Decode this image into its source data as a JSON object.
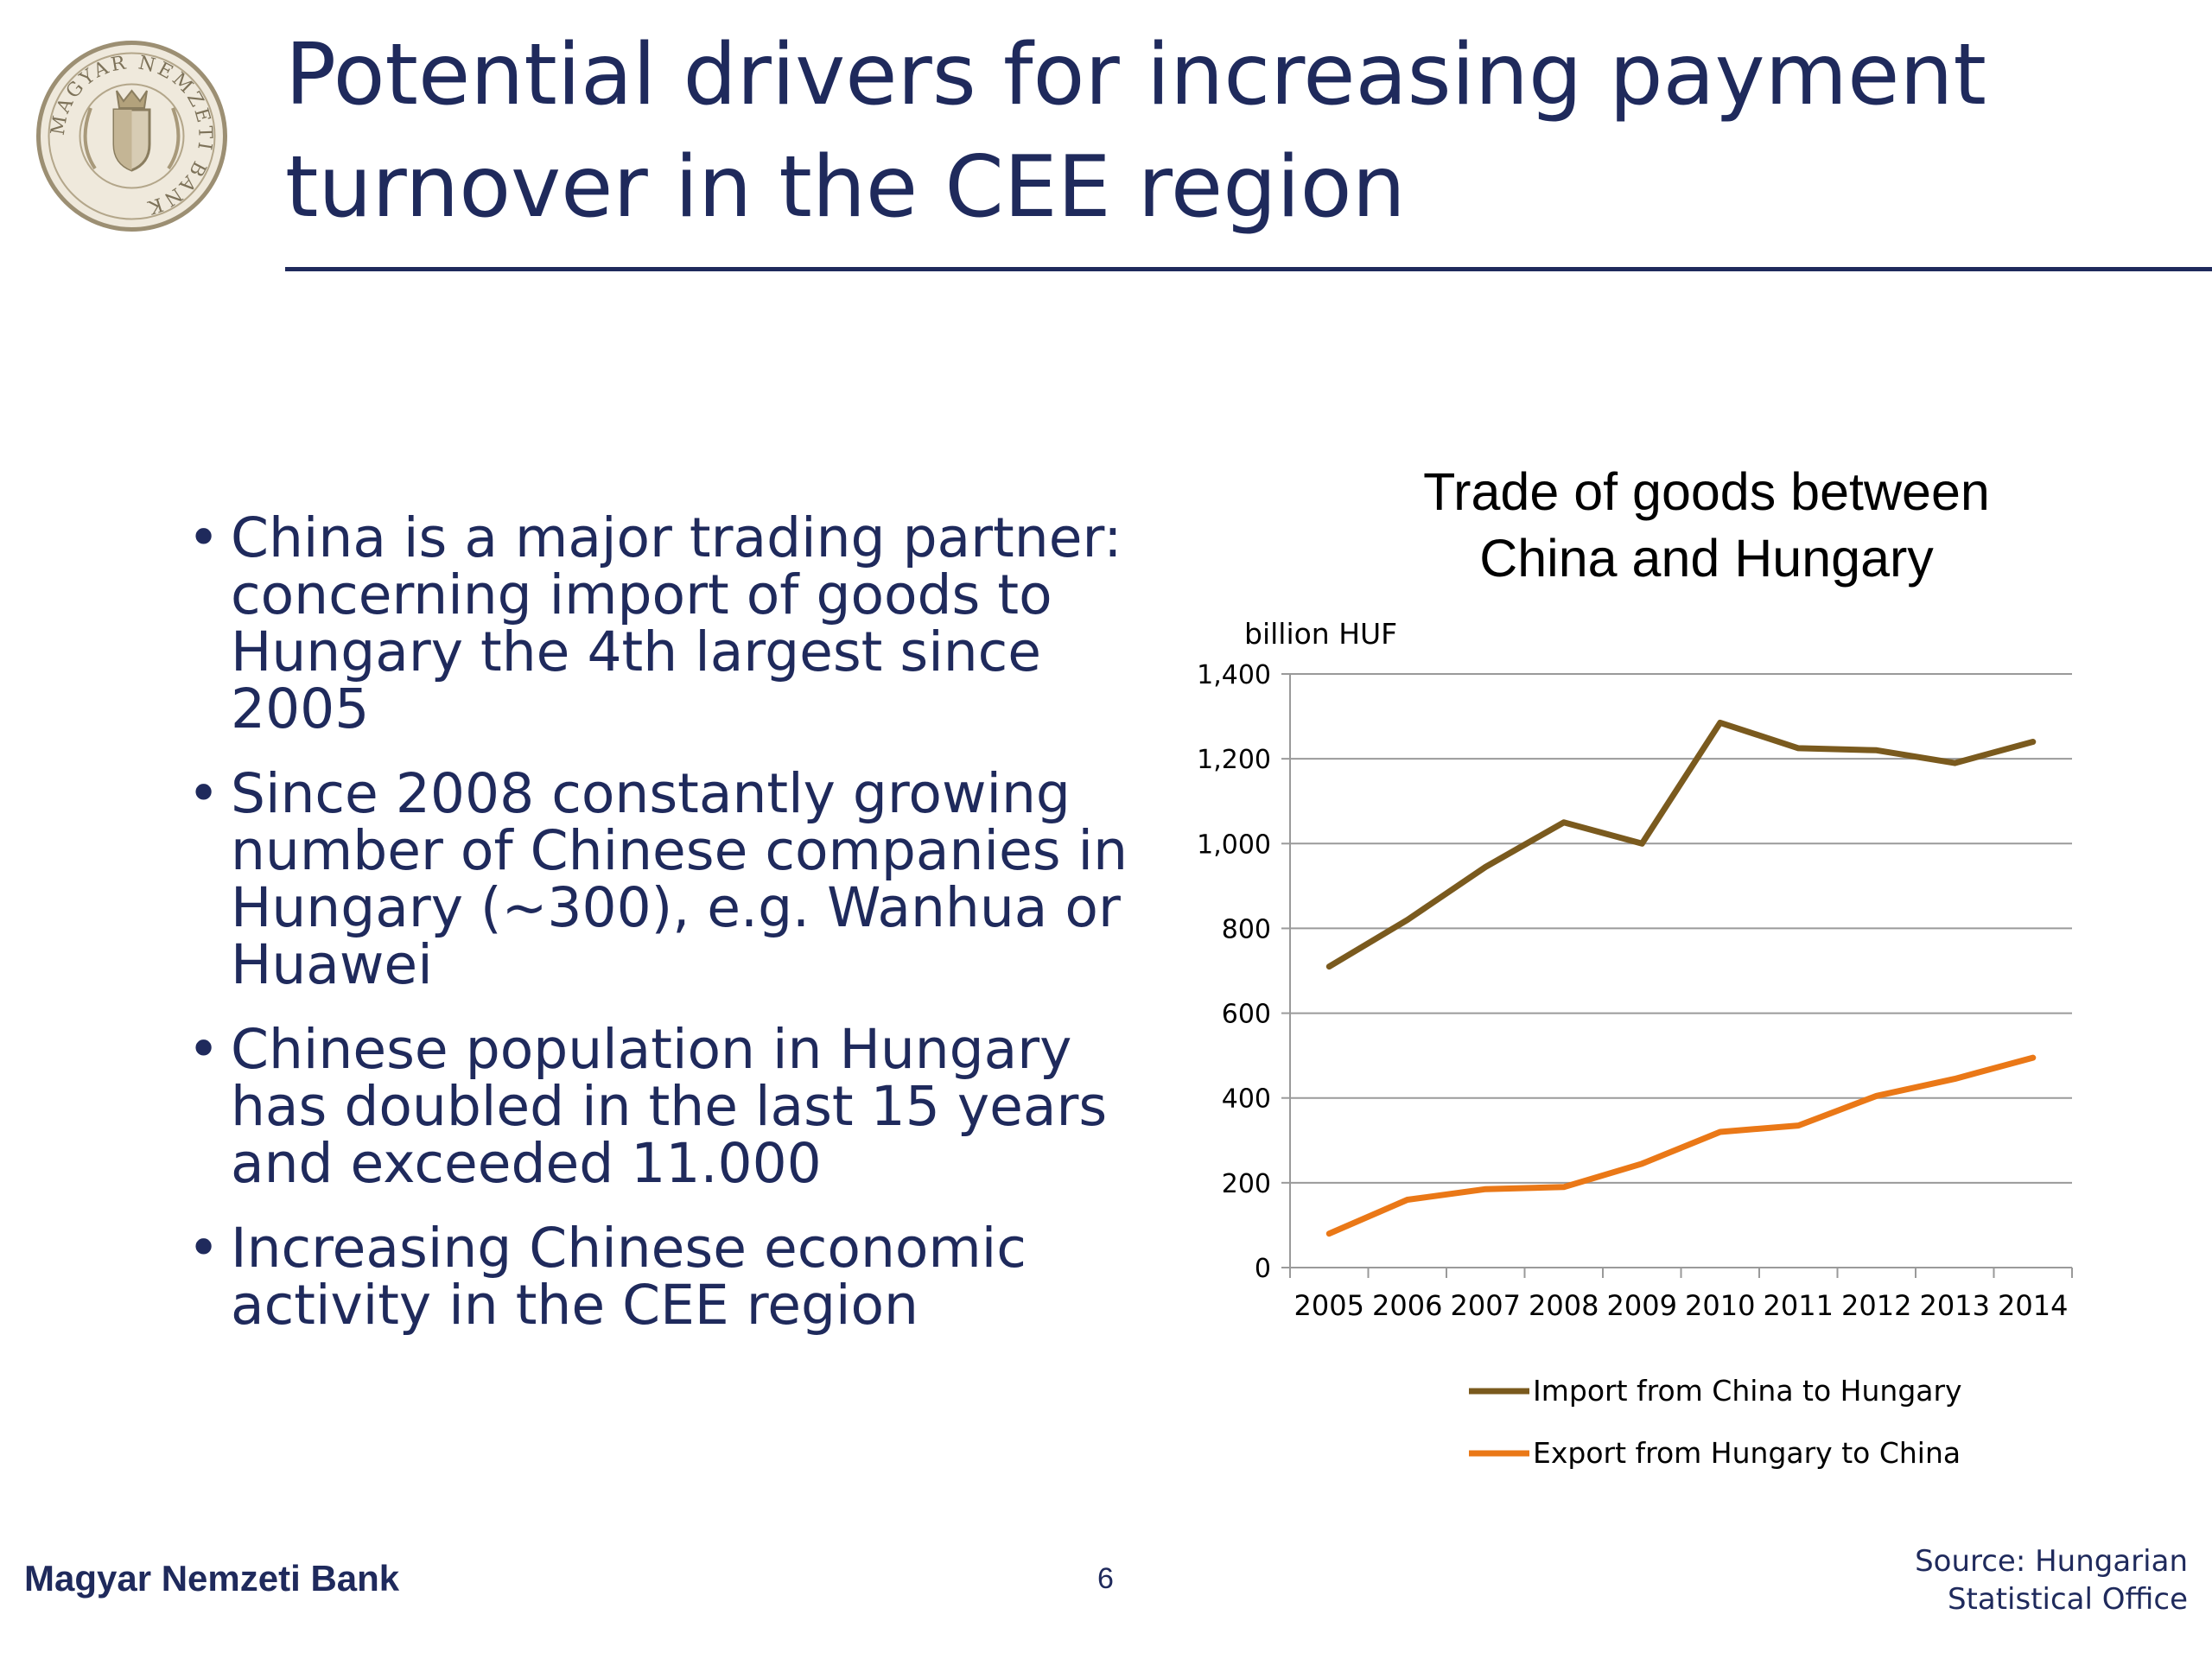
{
  "slide": {
    "title_lines": [
      "Potential drivers for increasing payment",
      "turnover in the CEE region"
    ],
    "bullets": [
      "China is a major trading partner: concerning import of goods to Hungary the 4th largest since 2005",
      "Since 2008 constantly growing number of Chinese companies in Hungary (~300), e.g. Wanhua or Huawei",
      "Chinese population in Hungary has doubled in the last 15 years and exceeded 11.000",
      "Increasing Chinese economic activity in the CEE region"
    ],
    "footer": {
      "bank": "Magyar Nemzeti Bank",
      "page": "6",
      "source_lines": [
        "Source: Hungarian",
        "Statistical Office"
      ]
    },
    "logo_text": "MAGYAR NEMZETI BANK"
  },
  "colors": {
    "navy": "#1f2a5c",
    "import": "#7a5a1e",
    "export": "#ea7817",
    "grid": "#9a9a9a"
  },
  "chart_data": {
    "type": "line",
    "title_lines": [
      "Trade of goods between",
      "China and Hungary"
    ],
    "ylabel": "billion HUF",
    "ylim": [
      0,
      1400
    ],
    "yticks": [
      0,
      200,
      400,
      600,
      800,
      1000,
      1200,
      1400
    ],
    "ytick_labels": [
      "0",
      "200",
      "400",
      "600",
      "800",
      "1,000",
      "1,200",
      "1,400"
    ],
    "categories": [
      "2005",
      "2006",
      "2007",
      "2008",
      "2009",
      "2010",
      "2011",
      "2012",
      "2013",
      "2014"
    ],
    "series": [
      {
        "name": "Import from China to Hungary",
        "values": [
          710,
          820,
          945,
          1050,
          1000,
          1285,
          1225,
          1220,
          1190,
          1240
        ]
      },
      {
        "name": "Export from Hungary to China",
        "values": [
          80,
          160,
          185,
          190,
          245,
          320,
          335,
          405,
          445,
          495
        ]
      }
    ],
    "grid": true,
    "legend_position": "bottom"
  }
}
